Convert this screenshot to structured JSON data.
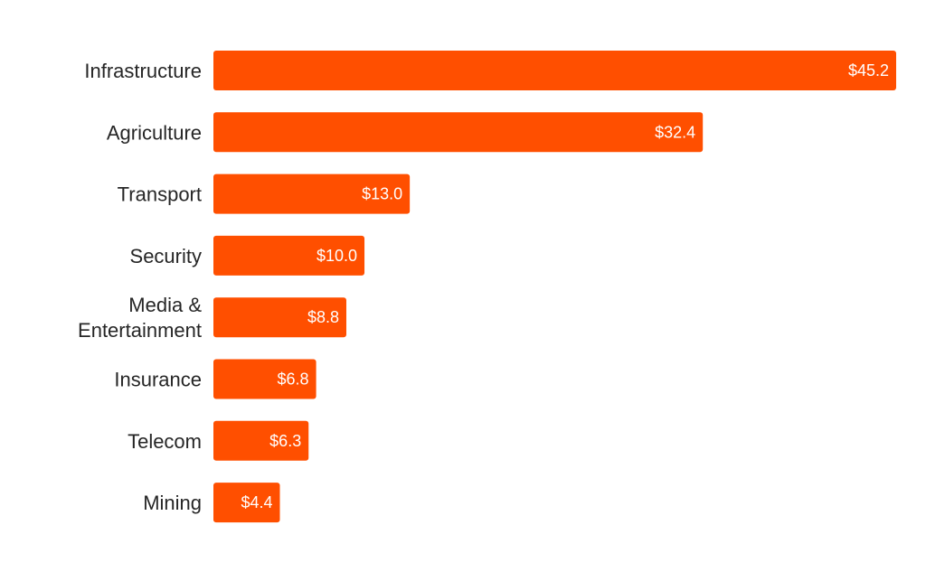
{
  "chart_data": {
    "type": "bar",
    "orientation": "horizontal",
    "title": "",
    "xlabel": "",
    "ylabel": "",
    "grid": false,
    "legend": "none",
    "bar_color": "#ff4f00",
    "xlim": [
      0,
      45.2
    ],
    "value_prefix": "$",
    "categories": [
      [
        "Infrastructure"
      ],
      [
        "Agriculture"
      ],
      [
        "Transport"
      ],
      [
        "Security"
      ],
      [
        "Media &",
        "Entertainment"
      ],
      [
        "Insurance"
      ],
      [
        "Telecom"
      ],
      [
        "Mining"
      ]
    ],
    "values": [
      45.2,
      32.4,
      13.0,
      10.0,
      8.8,
      6.8,
      6.3,
      4.4
    ],
    "value_labels": [
      "$45.2",
      "$32.4",
      "$13.0",
      "$10.0",
      "$8.8",
      "$6.8",
      "$6.3",
      "$4.4"
    ]
  }
}
